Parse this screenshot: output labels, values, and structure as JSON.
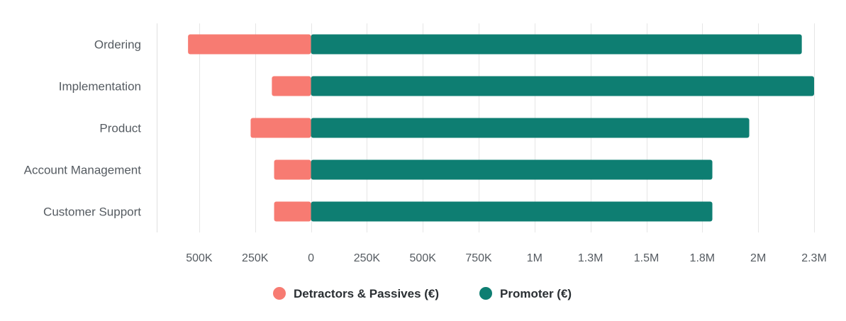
{
  "chart_data": {
    "type": "bar",
    "orientation": "horizontal",
    "stacked": "diverging",
    "categories": [
      "Ordering",
      "Implementation",
      "Product",
      "Account Management",
      "Customer Support"
    ],
    "series": [
      {
        "name": "Detractors & Passives (€)",
        "color": "#f77b72",
        "values": [
          -550000,
          -175000,
          -270000,
          -165000,
          -165000
        ]
      },
      {
        "name": "Promoter (€)",
        "color": "#0e7e72",
        "values": [
          2195000,
          2250000,
          1960000,
          1795000,
          1795000
        ]
      }
    ],
    "x_ticks": [
      {
        "value": -500000,
        "label": "500K"
      },
      {
        "value": -250000,
        "label": "250K"
      },
      {
        "value": 0,
        "label": "0"
      },
      {
        "value": 250000,
        "label": "250K"
      },
      {
        "value": 500000,
        "label": "500K"
      },
      {
        "value": 750000,
        "label": "750K"
      },
      {
        "value": 1000000,
        "label": "1M"
      },
      {
        "value": 1250000,
        "label": "1.3M"
      },
      {
        "value": 1500000,
        "label": "1.5M"
      },
      {
        "value": 1750000,
        "label": "1.8M"
      },
      {
        "value": 2000000,
        "label": "2M"
      },
      {
        "value": 2250000,
        "label": "2.3M"
      }
    ],
    "xlim": [
      -690000,
      2250000
    ],
    "grid": true,
    "legend_position": "bottom-center"
  }
}
